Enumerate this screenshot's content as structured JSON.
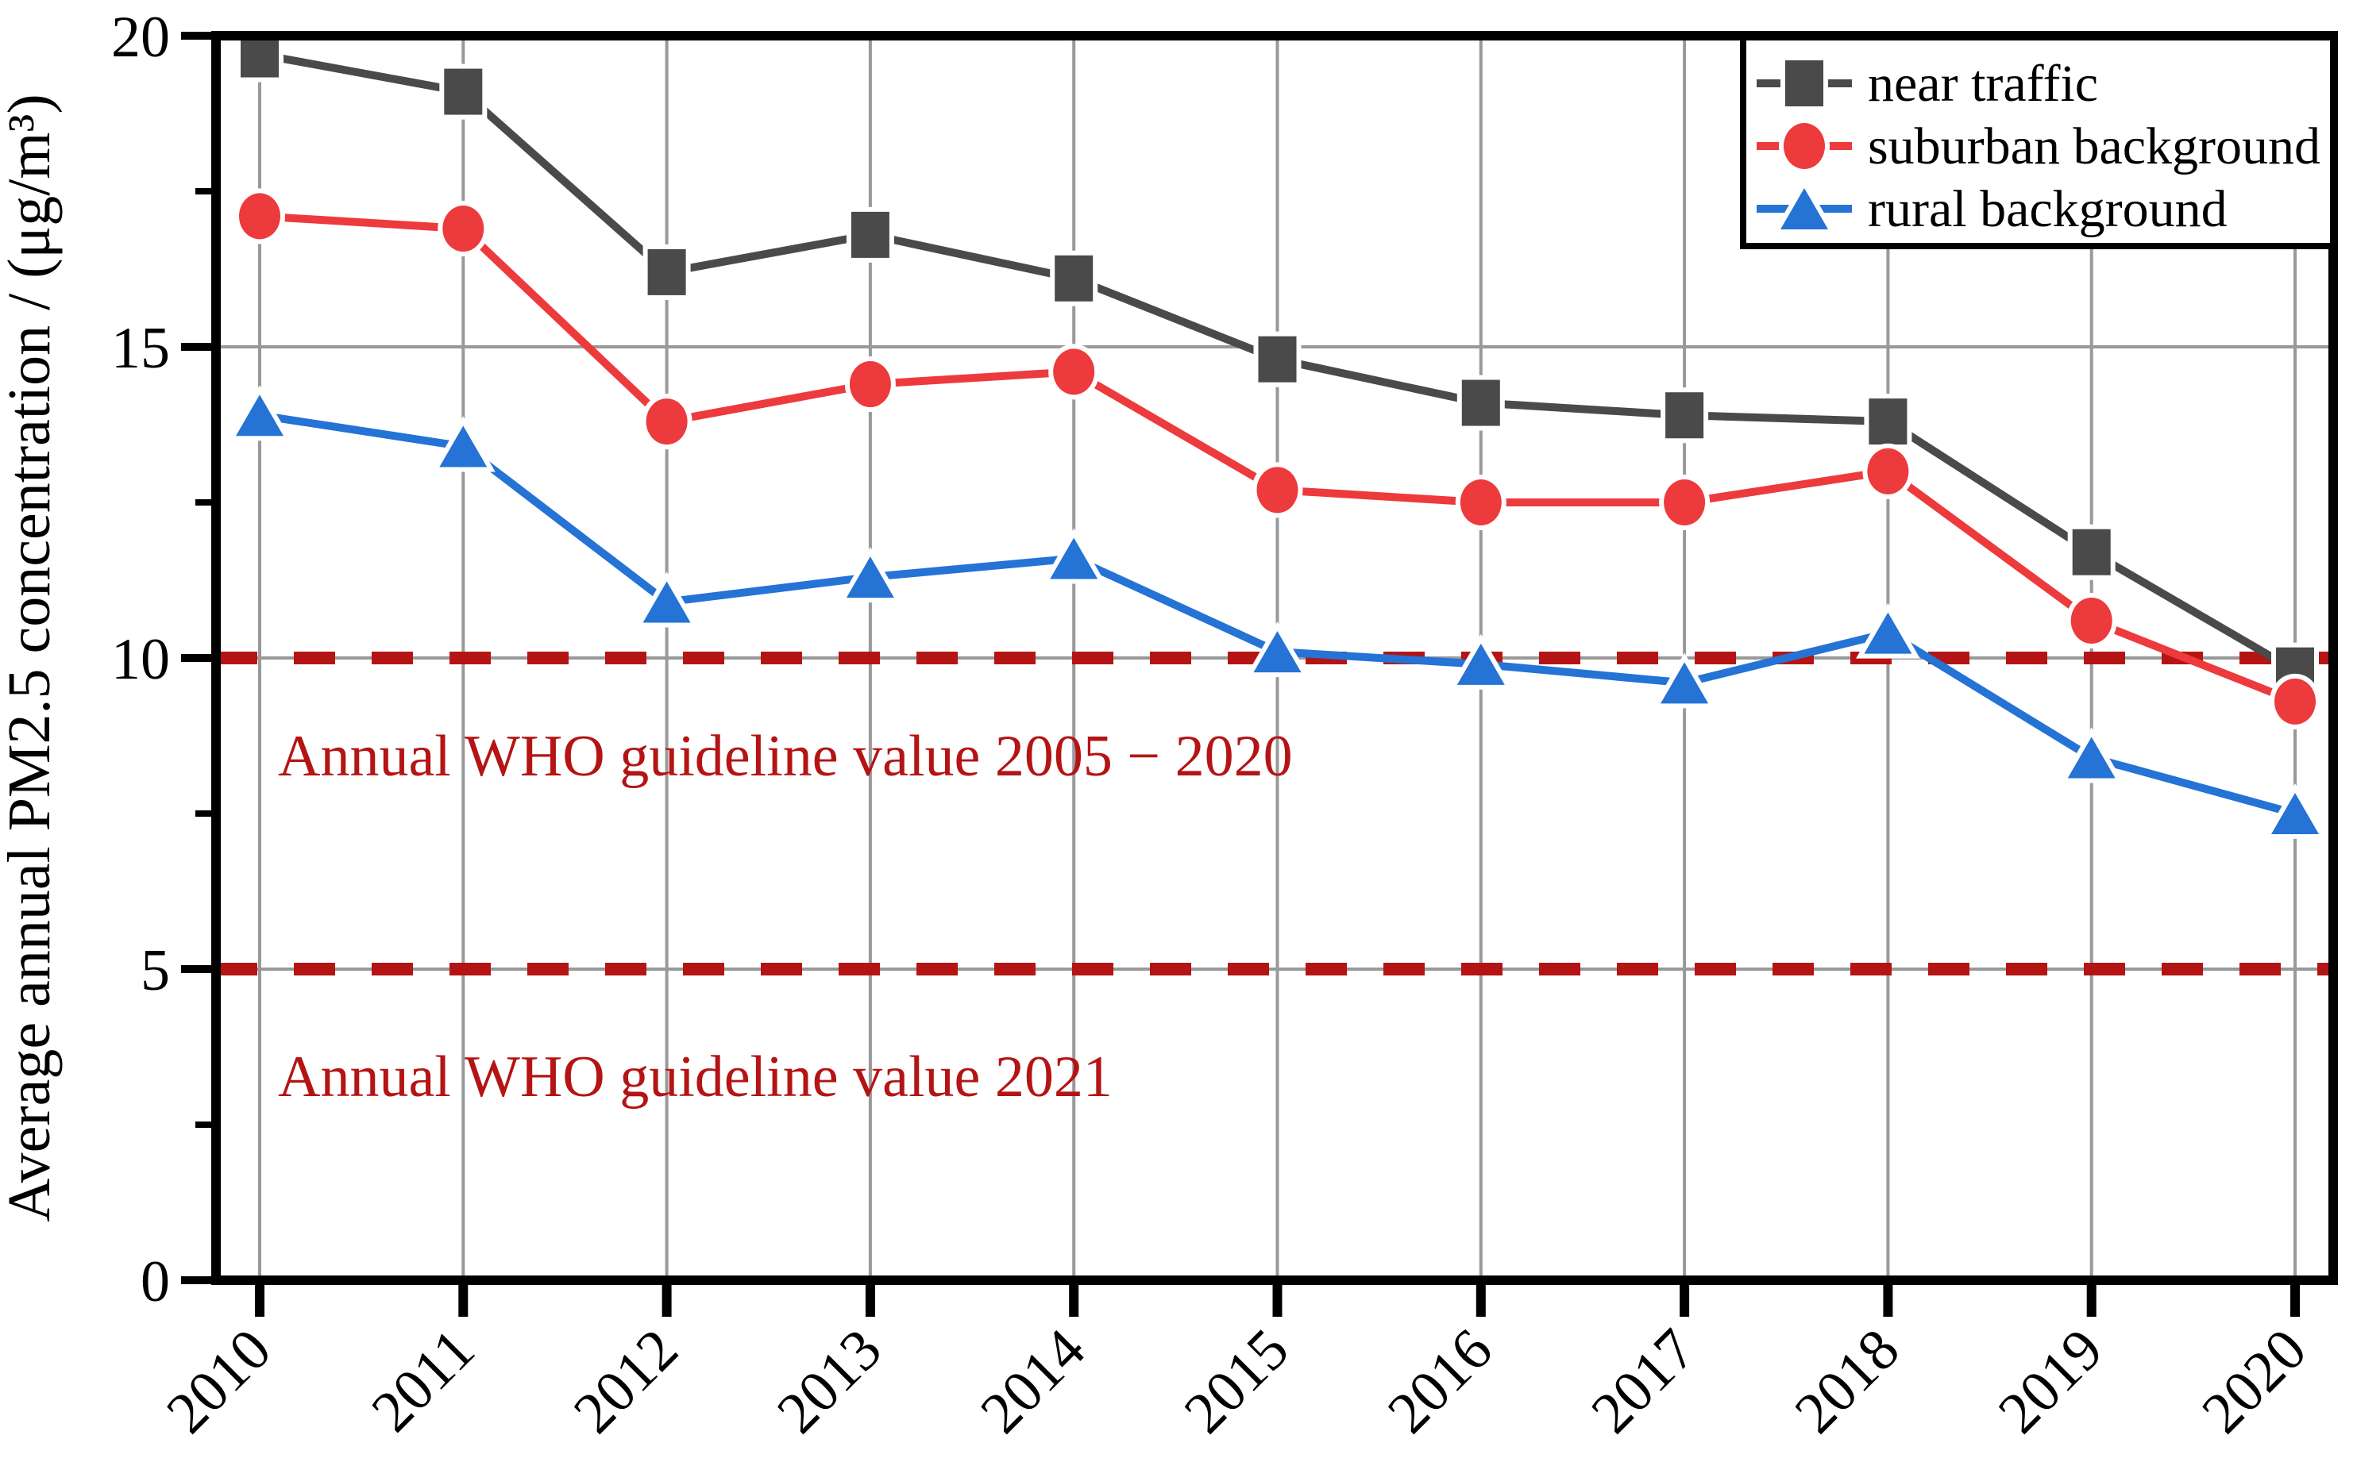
{
  "chart_data": {
    "type": "line",
    "title": "",
    "xlabel": "",
    "ylabel": "Average annual PM2.5 concentration / (μg/m³)",
    "x": [
      2010,
      2011,
      2012,
      2013,
      2014,
      2015,
      2016,
      2017,
      2018,
      2019,
      2020
    ],
    "series": [
      {
        "name": "near traffic",
        "marker": "square",
        "color": "#4a4a4a",
        "values": [
          19.7,
          19.1,
          16.2,
          16.8,
          16.1,
          14.8,
          14.1,
          13.9,
          13.8,
          11.7,
          9.8
        ]
      },
      {
        "name": "suburban background",
        "marker": "circle",
        "color": "#ed3a3c",
        "values": [
          17.1,
          16.9,
          13.8,
          14.4,
          14.6,
          12.7,
          12.5,
          12.5,
          13.0,
          10.6,
          9.3
        ]
      },
      {
        "name": "rural background",
        "marker": "triangle",
        "color": "#2473d5",
        "values": [
          13.9,
          13.4,
          10.9,
          11.3,
          11.6,
          10.1,
          9.9,
          9.6,
          10.4,
          8.4,
          7.5
        ]
      }
    ],
    "ylim": [
      0,
      20
    ],
    "yticks": [
      0,
      5,
      10,
      15,
      20
    ],
    "yminorticks": [
      2.5,
      7.5,
      12.5,
      17.5
    ],
    "grid": true,
    "legend_position": "upper-right",
    "reference_lines": [
      {
        "value": 10,
        "label": "Annual WHO guideline value 2005 − 2020",
        "style": "dashed"
      },
      {
        "value": 5,
        "label": "Annual WHO guideline value 2021",
        "style": "dashed"
      }
    ]
  },
  "colors": {
    "background": "#ffffff",
    "axis": "#000000",
    "grid": "#999999",
    "guideline_red": "#b41414",
    "near_traffic": "#4a4a4a",
    "suburban": "#ed3a3c",
    "rural": "#2473d5",
    "text": "#000000"
  }
}
